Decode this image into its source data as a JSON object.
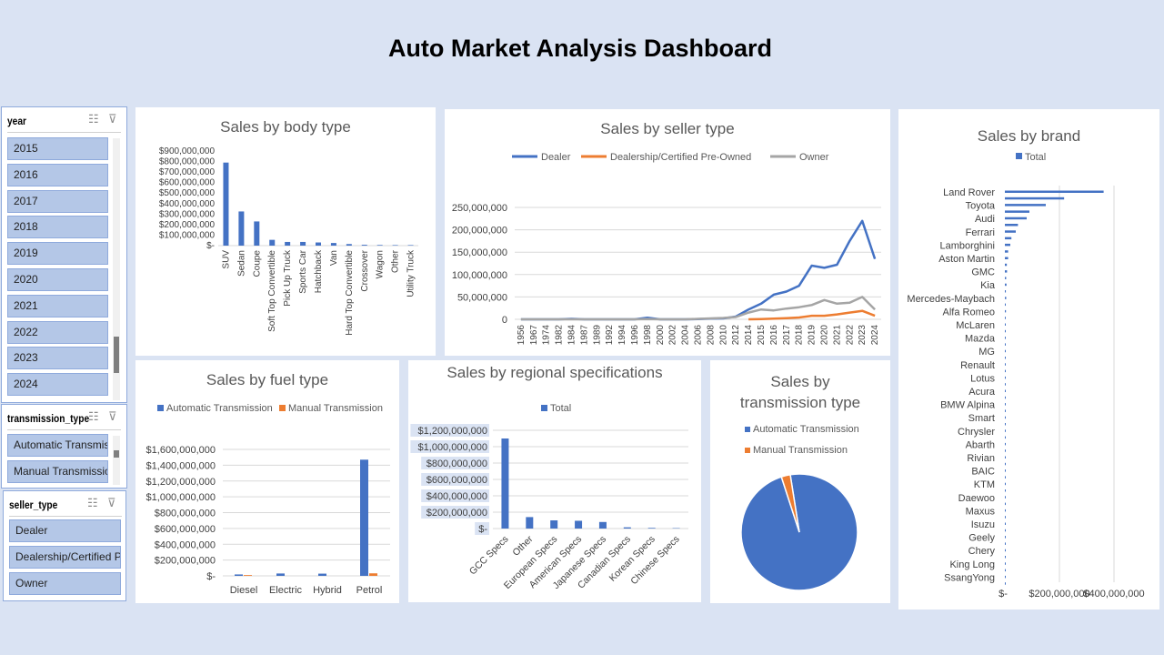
{
  "dashboard_title": "Auto Market Analysis Dashboard",
  "colors": {
    "blue": "#4472c4",
    "orange": "#ed7d31",
    "gray": "#a5a5a5",
    "background": "#dae3f3"
  },
  "slicers": {
    "year": {
      "header": "year",
      "items": [
        "2015",
        "2016",
        "2017",
        "2018",
        "2019",
        "2020",
        "2021",
        "2022",
        "2023",
        "2024"
      ]
    },
    "transmission": {
      "header": "transmission_type",
      "items": [
        "Automatic Transmis...",
        "Manual Transmission"
      ]
    },
    "seller": {
      "header": "seller_type",
      "items": [
        "Dealer",
        "Dealership/Certified Pre...",
        "Owner"
      ]
    }
  },
  "chart_data": [
    {
      "id": "body",
      "type": "bar",
      "title": "Sales by body type",
      "categories": [
        "SUV",
        "Sedan",
        "Coupe",
        "Soft Top Convertible",
        "Pick Up Truck",
        "Sports Car",
        "Hatchback",
        "Van",
        "Hard Top Convertible",
        "Crossover",
        "Wagon",
        "Other",
        "Utility Truck"
      ],
      "values": [
        790000000,
        325000000,
        230000000,
        55000000,
        35000000,
        35000000,
        30000000,
        25000000,
        15000000,
        8000000,
        6000000,
        5000000,
        5000000
      ],
      "ylim": [
        0,
        900000000
      ],
      "yticks": [
        "$-",
        "$100,000,000",
        "$200,000,000",
        "$300,000,000",
        "$400,000,000",
        "$500,000,000",
        "$600,000,000",
        "$700,000,000",
        "$800,000,000",
        "$900,000,000"
      ]
    },
    {
      "id": "seller",
      "type": "line",
      "title": "Sales by seller type",
      "x": [
        "1956",
        "1967",
        "1974",
        "1982",
        "1984",
        "1987",
        "1989",
        "1992",
        "1994",
        "1996",
        "1998",
        "2000",
        "2002",
        "2004",
        "2006",
        "2008",
        "2010",
        "2012",
        "2014",
        "2015",
        "2016",
        "2017",
        "2018",
        "2019",
        "2020",
        "2021",
        "2022",
        "2023",
        "2024"
      ],
      "series": [
        {
          "name": "Dealer",
          "values": [
            0,
            0,
            0,
            0,
            1000000,
            0,
            0,
            0,
            0,
            0,
            3500000,
            0,
            0,
            0,
            500000,
            1500000,
            2000000,
            6000000,
            22000000,
            35000000,
            55000000,
            62000000,
            75000000,
            120000000,
            115000000,
            122000000,
            175000000,
            220000000,
            135000000
          ]
        },
        {
          "name": "Dealership/Certified Pre-Owned",
          "values": [
            null,
            null,
            null,
            null,
            null,
            null,
            null,
            null,
            null,
            null,
            null,
            null,
            null,
            null,
            null,
            null,
            null,
            null,
            0,
            500000,
            1500000,
            2500000,
            4000000,
            8000000,
            8000000,
            11000000,
            15000000,
            19000000,
            8000000
          ]
        },
        {
          "name": "Owner",
          "values": [
            0,
            0,
            0,
            0,
            0,
            0,
            0,
            0,
            0,
            0,
            500000,
            0,
            0,
            0,
            1000000,
            2000000,
            3000000,
            5000000,
            15000000,
            22000000,
            20000000,
            24000000,
            27000000,
            32000000,
            43000000,
            35000000,
            37000000,
            50000000,
            22000000
          ]
        }
      ],
      "ylim": [
        0,
        250000000
      ],
      "yticks": [
        "0",
        "50,000,000",
        "100,000,000",
        "150,000,000",
        "200,000,000",
        "250,000,000"
      ]
    },
    {
      "id": "brand",
      "type": "bar",
      "title": "Sales by brand",
      "legend": [
        "Total"
      ],
      "categories": [
        "Land Rover",
        "Toyota",
        "Audi",
        "Ferrari",
        "Lamborghini",
        "Aston Martin",
        "GMC",
        "Kia",
        "Mercedes-Maybach",
        "Alfa Romeo",
        "McLaren",
        "Mazda",
        "MG",
        "Renault",
        "Lotus",
        "Acura",
        "BMW Alpina",
        "Smart",
        "Chrysler",
        "Abarth",
        "Rivian",
        "BAIC",
        "KTM",
        "Daewoo",
        "Maxus",
        "Isuzu",
        "Geely",
        "Chery",
        "King Long",
        "SsangYong"
      ],
      "values": [
        362000000,
        150000000,
        80000000,
        40000000,
        20000000,
        12000000,
        8000000,
        6000000,
        5000000,
        4000000,
        3000000,
        2500000,
        2000000,
        1800000,
        1500000,
        1300000,
        1200000,
        1000000,
        900000,
        800000,
        700000,
        600000,
        500000,
        450000,
        400000,
        350000,
        300000,
        250000,
        200000,
        150000
      ],
      "xlim": [
        0,
        400000000
      ],
      "xticks": [
        "$-",
        "$200,000,000",
        "$400,000,000"
      ]
    },
    {
      "id": "fuel",
      "type": "bar",
      "title": "Sales by fuel type",
      "categories": [
        "Diesel",
        "Electric",
        "Hybrid",
        "Petrol"
      ],
      "series": [
        {
          "name": "Automatic Transmission",
          "values": [
            18000000,
            30000000,
            28000000,
            1470000000
          ]
        },
        {
          "name": "Manual Transmission",
          "values": [
            10000000,
            0,
            0,
            32000000
          ]
        }
      ],
      "ylim": [
        0,
        1600000000
      ],
      "yticks": [
        "$-",
        "$200,000,000",
        "$400,000,000",
        "$600,000,000",
        "$800,000,000",
        "$1,000,000,000",
        "$1,200,000,000",
        "$1,400,000,000",
        "$1,600,000,000"
      ]
    },
    {
      "id": "region",
      "type": "bar",
      "title": "Sales by regional specifications",
      "legend": [
        "Total"
      ],
      "categories": [
        "GCC Specs",
        "Other",
        "European Specs",
        "American Specs",
        "Japanese Specs",
        "Canadian Specs",
        "Korean Specs",
        "Chinese Specs"
      ],
      "values": [
        1100000000,
        140000000,
        100000000,
        95000000,
        80000000,
        15000000,
        8000000,
        5000000
      ],
      "ylim": [
        0,
        1200000000
      ],
      "yticks": [
        "$-",
        "$200,000,000",
        "$400,000,000",
        "$600,000,000",
        "$800,000,000",
        "$1,000,000,000",
        "$1,200,000,000"
      ]
    },
    {
      "id": "trans",
      "type": "pie",
      "title": "Sales by transmission type",
      "categories": [
        "Automatic Transmission",
        "Manual Transmission"
      ],
      "values": [
        97.5,
        2.5
      ]
    }
  ]
}
